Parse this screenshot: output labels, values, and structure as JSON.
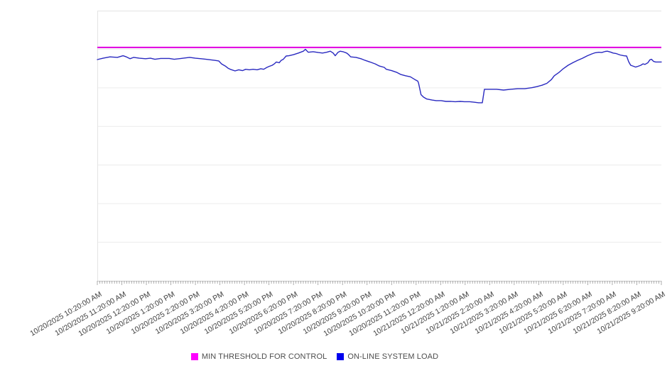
{
  "chart_data": {
    "type": "line",
    "title": "",
    "xlabel": "",
    "ylabel": "",
    "x_axis": {
      "labels": [
        "10/20/2025 10:20:00 AM",
        "10/20/2025 11:20:00 AM",
        "10/20/2025 12:20:00 PM",
        "10/20/2025 1:20:00 PM",
        "10/20/2025 2:20:00 PM",
        "10/20/2025 3:20:00 PM",
        "10/20/2025 4:20:00 PM",
        "10/20/2025 5:20:00 PM",
        "10/20/2025 6:20:00 PM",
        "10/20/2025 7:20:00 PM",
        "10/20/2025 8:20:00 PM",
        "10/20/2025 9:20:00 PM",
        "10/20/2025 10:20:00 PM",
        "10/20/2025 11:20:00 PM",
        "10/21/2025 12:20:00 AM",
        "10/21/2025 1:20:00 AM",
        "10/21/2025 2:20:00 AM",
        "10/21/2025 3:20:00 AM",
        "10/21/2025 4:20:00 AM",
        "10/21/2025 5:20:00 AM",
        "10/21/2025 6:20:00 AM",
        "10/21/2025 7:20:00 AM",
        "10/21/2025 8:20:00 AM",
        "10/21/2025 9:20:00 AM"
      ],
      "minutes_between_labels": 60,
      "range_minutes": [
        0,
        1380
      ],
      "label_rotation_deg": -30,
      "minor_tick_minutes": 6
    },
    "y_axis": {
      "labels_visible": false,
      "scale": "relative 0-100 (no tick labels shown in chart)",
      "ylim": [
        0,
        100
      ],
      "grid_divisions": 7,
      "grid_on": true
    },
    "series": [
      {
        "name": "MIN THRESHOLD FOR CONTROL",
        "kind": "constant-threshold",
        "color": "#e000e0",
        "value": 86.4
      },
      {
        "name": "ON-LINE SYSTEM LOAD",
        "kind": "line",
        "color": "#2929c0",
        "points_t_min_value": [
          [
            0,
            81.9
          ],
          [
            14,
            82.4
          ],
          [
            31,
            82.9
          ],
          [
            49,
            82.7
          ],
          [
            63,
            83.3
          ],
          [
            71,
            82.9
          ],
          [
            80,
            82.2
          ],
          [
            89,
            82.7
          ],
          [
            103,
            82.4
          ],
          [
            118,
            82.2
          ],
          [
            130,
            82.4
          ],
          [
            141,
            82.0
          ],
          [
            155,
            82.3
          ],
          [
            176,
            82.3
          ],
          [
            188,
            82.0
          ],
          [
            210,
            82.4
          ],
          [
            226,
            82.7
          ],
          [
            240,
            82.4
          ],
          [
            254,
            82.2
          ],
          [
            266,
            82.0
          ],
          [
            287,
            81.6
          ],
          [
            297,
            81.4
          ],
          [
            304,
            80.3
          ],
          [
            313,
            79.5
          ],
          [
            320,
            78.7
          ],
          [
            327,
            78.2
          ],
          [
            337,
            77.7
          ],
          [
            346,
            78.1
          ],
          [
            355,
            77.8
          ],
          [
            363,
            78.3
          ],
          [
            372,
            78.1
          ],
          [
            381,
            78.3
          ],
          [
            391,
            78.1
          ],
          [
            400,
            78.5
          ],
          [
            407,
            78.3
          ],
          [
            415,
            79.0
          ],
          [
            421,
            79.4
          ],
          [
            428,
            79.8
          ],
          [
            433,
            80.3
          ],
          [
            438,
            81.0
          ],
          [
            445,
            80.7
          ],
          [
            450,
            81.6
          ],
          [
            455,
            82.0
          ],
          [
            462,
            83.2
          ],
          [
            469,
            83.3
          ],
          [
            480,
            83.7
          ],
          [
            492,
            84.3
          ],
          [
            504,
            85.0
          ],
          [
            509,
            85.7
          ],
          [
            516,
            84.6
          ],
          [
            528,
            84.8
          ],
          [
            541,
            84.5
          ],
          [
            551,
            84.3
          ],
          [
            561,
            84.6
          ],
          [
            570,
            85.0
          ],
          [
            577,
            84.3
          ],
          [
            582,
            83.3
          ],
          [
            589,
            84.6
          ],
          [
            594,
            85.0
          ],
          [
            601,
            84.8
          ],
          [
            610,
            84.3
          ],
          [
            615,
            83.7
          ],
          [
            620,
            82.9
          ],
          [
            633,
            82.7
          ],
          [
            645,
            82.2
          ],
          [
            655,
            81.6
          ],
          [
            667,
            81.0
          ],
          [
            680,
            80.3
          ],
          [
            690,
            79.5
          ],
          [
            702,
            79.0
          ],
          [
            707,
            78.3
          ],
          [
            720,
            77.8
          ],
          [
            732,
            77.2
          ],
          [
            742,
            76.4
          ],
          [
            754,
            75.9
          ],
          [
            766,
            75.5
          ],
          [
            777,
            74.5
          ],
          [
            784,
            73.9
          ],
          [
            786,
            73.2
          ],
          [
            792,
            68.9
          ],
          [
            798,
            68.0
          ],
          [
            806,
            67.3
          ],
          [
            819,
            66.9
          ],
          [
            829,
            66.7
          ],
          [
            841,
            66.7
          ],
          [
            853,
            66.4
          ],
          [
            864,
            66.4
          ],
          [
            876,
            66.3
          ],
          [
            888,
            66.4
          ],
          [
            898,
            66.3
          ],
          [
            911,
            66.3
          ],
          [
            923,
            66.1
          ],
          [
            933,
            65.9
          ],
          [
            942,
            65.9
          ],
          [
            947,
            70.9
          ],
          [
            961,
            70.9
          ],
          [
            977,
            70.9
          ],
          [
            994,
            70.6
          ],
          [
            1011,
            70.9
          ],
          [
            1029,
            71.1
          ],
          [
            1046,
            71.1
          ],
          [
            1064,
            71.5
          ],
          [
            1076,
            71.9
          ],
          [
            1088,
            72.4
          ],
          [
            1100,
            73.1
          ],
          [
            1111,
            74.5
          ],
          [
            1118,
            75.9
          ],
          [
            1130,
            77.2
          ],
          [
            1140,
            78.5
          ],
          [
            1152,
            79.8
          ],
          [
            1164,
            80.8
          ],
          [
            1175,
            81.6
          ],
          [
            1187,
            82.4
          ],
          [
            1199,
            83.3
          ],
          [
            1210,
            84.0
          ],
          [
            1218,
            84.4
          ],
          [
            1227,
            84.6
          ],
          [
            1234,
            84.5
          ],
          [
            1243,
            84.9
          ],
          [
            1248,
            85.0
          ],
          [
            1257,
            84.6
          ],
          [
            1262,
            84.3
          ],
          [
            1270,
            84.1
          ],
          [
            1279,
            83.6
          ],
          [
            1288,
            83.3
          ],
          [
            1295,
            83.2
          ],
          [
            1300,
            81.1
          ],
          [
            1305,
            79.8
          ],
          [
            1312,
            79.4
          ],
          [
            1317,
            79.1
          ],
          [
            1323,
            79.4
          ],
          [
            1330,
            79.8
          ],
          [
            1335,
            80.3
          ],
          [
            1340,
            80.1
          ],
          [
            1347,
            80.7
          ],
          [
            1352,
            81.8
          ],
          [
            1356,
            82.0
          ],
          [
            1361,
            81.2
          ],
          [
            1366,
            81.0
          ],
          [
            1373,
            81.0
          ],
          [
            1380,
            81.0
          ]
        ]
      }
    ],
    "legend": {
      "position": "bottom",
      "items": [
        {
          "label": "MIN THRESHOLD FOR CONTROL",
          "swatch_color": "#ff00ff"
        },
        {
          "label": "ON-LINE SYSTEM LOAD",
          "swatch_color": "#0000ee"
        }
      ]
    },
    "styles": {
      "background": "#ffffff",
      "grid_color": "#ececec",
      "border_color": "#e4e4e4",
      "axis_line_color": "#c9c9c9",
      "tick_color": "#9a9a9a",
      "x_label_color": "#3f3f3f",
      "legend_text_color": "#4d4d4d"
    }
  }
}
